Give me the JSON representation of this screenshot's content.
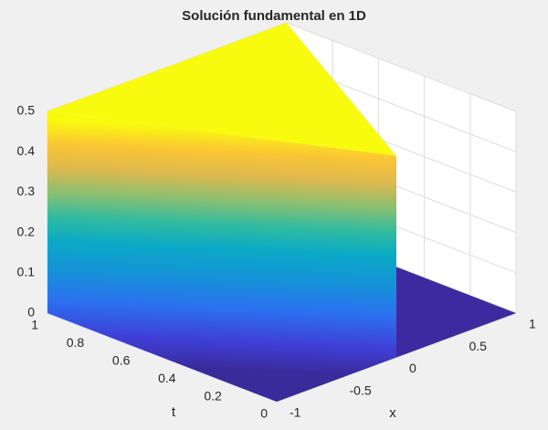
{
  "chart_data": {
    "type": "surface",
    "title": "Solución fundamental en 1D",
    "xlabel": "x",
    "ylabel": "t",
    "xlim": [
      -1,
      1
    ],
    "xticks": [
      -1,
      -0.5,
      0,
      0.5,
      1
    ],
    "ylim": [
      0,
      1
    ],
    "yticks": [
      0,
      0.2,
      0.4,
      0.6,
      0.8,
      1
    ],
    "zlim": [
      0,
      0.5
    ],
    "zticks": [
      0,
      0.1,
      0.2,
      0.3,
      0.4,
      0.5
    ],
    "grid": true,
    "colormap": "parula"
  }
}
